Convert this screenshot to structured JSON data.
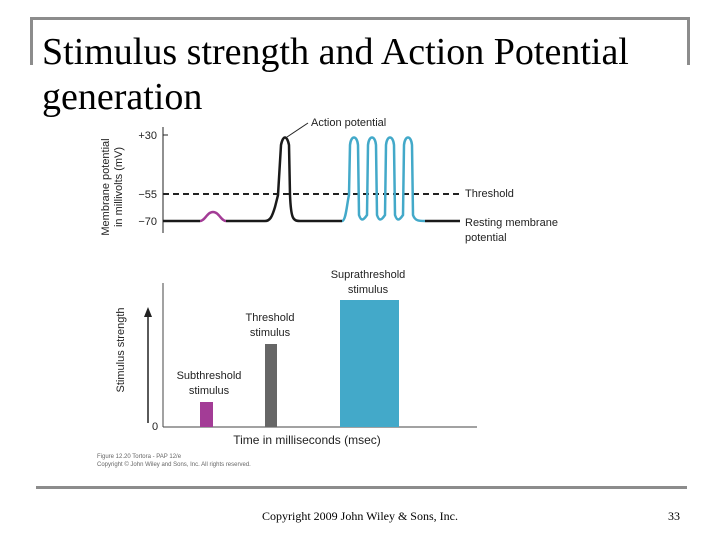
{
  "slide": {
    "title": "Stimulus strength and Action Potential generation",
    "footer": "Copyright 2009 John Wiley & Sons, Inc.",
    "page_number": "33"
  },
  "diagram": {
    "top_panel": {
      "y_axis_label_line1": "Membrane potential",
      "y_axis_label_line2": "in millivolts (mV)",
      "ticks": [
        "+30",
        "−55",
        "−70"
      ],
      "action_potential_label": "Action potential",
      "threshold_label": "Threshold",
      "resting_label_line1": "Resting membrane",
      "resting_label_line2": "potential"
    },
    "bottom_panel": {
      "y_axis_label": "Stimulus strength",
      "zero_label": "0",
      "x_axis_label": "Time in milliseconds (msec)",
      "subthreshold_line1": "Subthreshold",
      "subthreshold_line2": "stimulus",
      "threshold_line1": "Threshold",
      "threshold_line2": "stimulus",
      "suprathreshold_line1": "Suprathreshold",
      "suprathreshold_line2": "stimulus"
    },
    "caption_line1": "Figure 12.20 Tortora - PAP 12/e",
    "caption_line2": "Copyright © John Wiley and Sons, Inc. All rights reserved."
  },
  "colors": {
    "subthreshold": "#a33c96",
    "threshold": "#666666",
    "suprathreshold": "#43a9c9",
    "trace": "#1a1a1a"
  }
}
